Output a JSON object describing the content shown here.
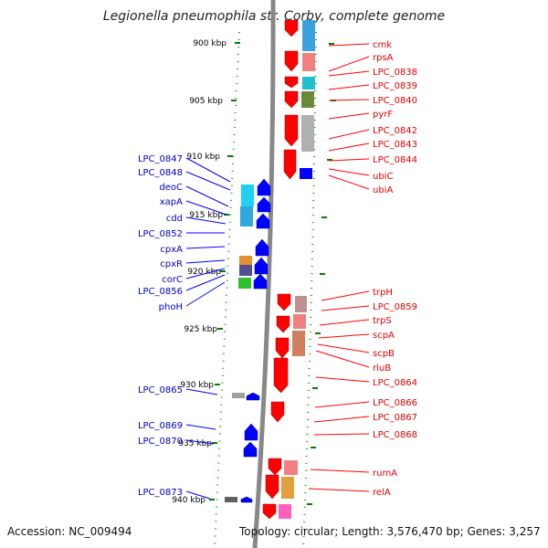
{
  "title": "Legionella pneumophila str. Corby, complete genome",
  "footer": {
    "accession": "Accession: NC_009494",
    "topology": "Topology: circular",
    "length": "Length: 3,576,470 bp",
    "genes": "Genes: 3,257"
  },
  "scale": {
    "unit": "kbp",
    "ticks": [
      "900 kbp",
      "905 kbp",
      "910 kbp",
      "915 kbp",
      "920 kbp",
      "925 kbp",
      "930 kbp",
      "935 kbp",
      "940 kbp"
    ]
  },
  "colors": {
    "forward_strand": "#ff0000",
    "reverse_strand": "#0000ff",
    "backbone": "#888888",
    "tick_marks": "#008000"
  },
  "forward_genes": [
    "cmk",
    "rpsA",
    "LPC_0838",
    "LPC_0839",
    "LPC_0840",
    "pyrF",
    "LPC_0842",
    "LPC_0843",
    "LPC_0844",
    "ubiC",
    "ubiA",
    "trpH",
    "LPC_0859",
    "trpS",
    "scpA",
    "scpB",
    "rluB",
    "LPC_0864",
    "LPC_0866",
    "LPC_0867",
    "LPC_0868",
    "rumA",
    "relA"
  ],
  "reverse_genes": [
    "LPC_0847",
    "LPC_0848",
    "deoC",
    "xapA",
    "cdd",
    "LPC_0852",
    "cpxA",
    "cpxR",
    "corC",
    "LPC_0856",
    "phoH",
    "LPC_0865",
    "LPC_0869",
    "LPC_0870",
    "LPC_0873"
  ]
}
